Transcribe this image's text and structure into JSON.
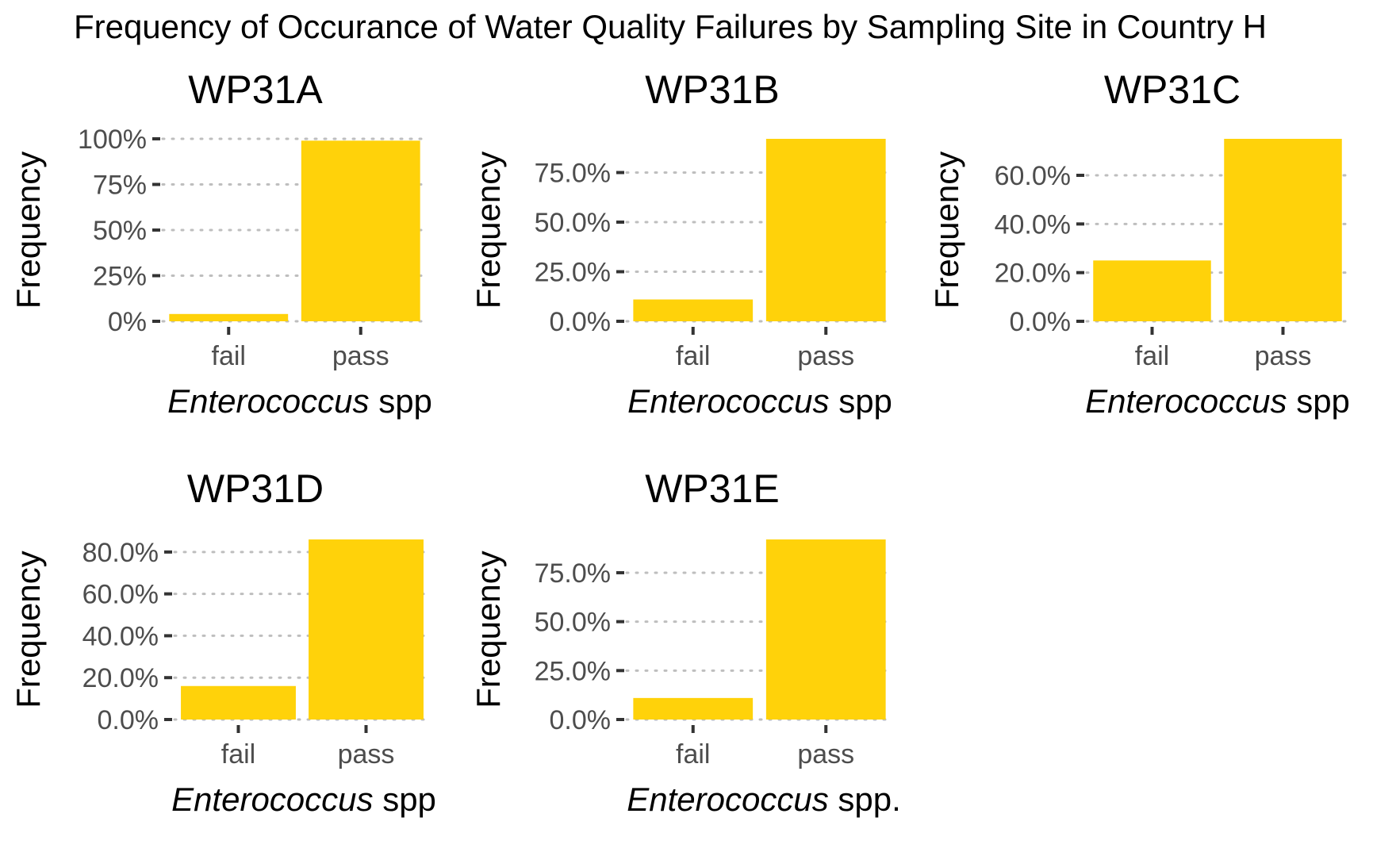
{
  "main_title": "Frequency of Occurance of Water Quality Failures by Sampling Site in Country H",
  "colors": {
    "bar": "#FFD20A",
    "grid": "#BEBEBE",
    "tick": "#333333",
    "tick_label": "#4D4D4D"
  },
  "chart_data": [
    {
      "type": "bar",
      "title": "WP31A",
      "xlabel_italic": "Enterococcus",
      "xlabel_rest": " spp",
      "ylabel": "Frequency",
      "categories": [
        "fail",
        "pass"
      ],
      "values": [
        0.04,
        0.99
      ],
      "ylim": [
        0,
        1.0
      ],
      "yticks": [
        0,
        0.25,
        0.5,
        0.75,
        1.0
      ],
      "ytick_labels": [
        "0%",
        "25%",
        "50%",
        "75%",
        "100%"
      ],
      "grid": "horizontal dotted"
    },
    {
      "type": "bar",
      "title": "WP31B",
      "xlabel_italic": "Enterococcus",
      "xlabel_rest": " spp",
      "ylabel": "Frequency",
      "categories": [
        "fail",
        "pass"
      ],
      "values": [
        0.11,
        0.92
      ],
      "ylim": [
        0,
        0.92
      ],
      "yticks": [
        0,
        0.25,
        0.5,
        0.75
      ],
      "ytick_labels": [
        "0.0%",
        "25.0%",
        "50.0%",
        "75.0%"
      ],
      "grid": "horizontal dotted"
    },
    {
      "type": "bar",
      "title": "WP31C",
      "xlabel_italic": "Enterococcus",
      "xlabel_rest": " spp",
      "ylabel": "Frequency",
      "categories": [
        "fail",
        "pass"
      ],
      "values": [
        0.25,
        0.75
      ],
      "ylim": [
        0,
        0.75
      ],
      "yticks": [
        0,
        0.2,
        0.4,
        0.6
      ],
      "ytick_labels": [
        "0.0%",
        "20.0%",
        "40.0%",
        "60.0%"
      ],
      "grid": "horizontal dotted"
    },
    {
      "type": "bar",
      "title": "WP31D",
      "xlabel_italic": "Enterococcus",
      "xlabel_rest": " spp",
      "ylabel": "Frequency",
      "categories": [
        "fail",
        "pass"
      ],
      "values": [
        0.16,
        0.86
      ],
      "ylim": [
        0,
        0.86
      ],
      "yticks": [
        0,
        0.2,
        0.4,
        0.6,
        0.8
      ],
      "ytick_labels": [
        "0.0%",
        "20.0%",
        "40.0%",
        "60.0%",
        "80.0%"
      ],
      "grid": "horizontal dotted"
    },
    {
      "type": "bar",
      "title": "WP31E",
      "xlabel_italic": "Enterococcus",
      "xlabel_rest": " spp.",
      "ylabel": "Frequency",
      "categories": [
        "fail",
        "pass"
      ],
      "values": [
        0.11,
        0.92
      ],
      "ylim": [
        0,
        0.92
      ],
      "yticks": [
        0,
        0.25,
        0.5,
        0.75
      ],
      "ytick_labels": [
        "0.0%",
        "25.0%",
        "50.0%",
        "75.0%"
      ],
      "grid": "horizontal dotted"
    }
  ]
}
